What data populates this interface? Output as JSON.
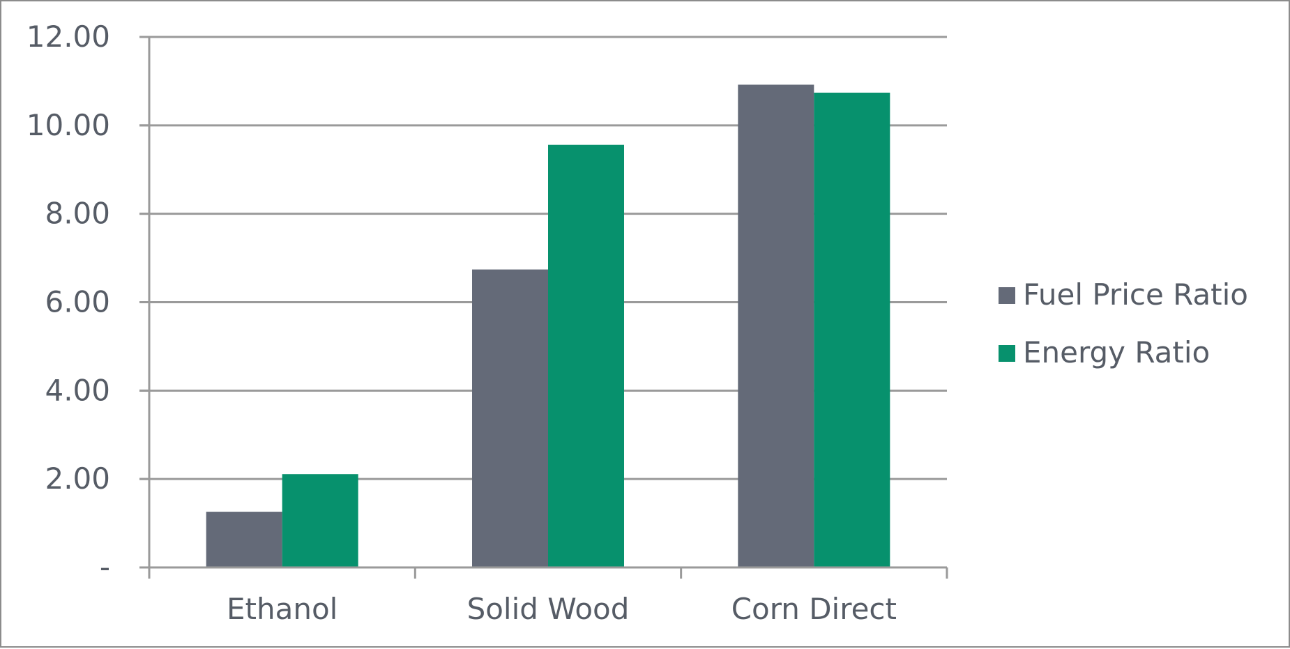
{
  "chart_data": {
    "type": "bar",
    "categories": [
      "Ethanol",
      "Solid Wood",
      "Corn Direct"
    ],
    "series": [
      {
        "name": "Fuel Price Ratio",
        "values": [
          1.26,
          6.74,
          10.92
        ],
        "color": "#646a78"
      },
      {
        "name": "Energy Ratio",
        "values": [
          2.11,
          9.56,
          10.74
        ],
        "color": "#07916d"
      }
    ],
    "ylim": [
      0,
      12
    ],
    "yticks": [
      0,
      2,
      4,
      6,
      8,
      10,
      12
    ],
    "ytick_labels": [
      "-",
      "2.00",
      "4.00",
      "6.00",
      "8.00",
      "10.00",
      "12.00"
    ],
    "grid": true,
    "legend_position": "right",
    "title": "",
    "xlabel": "",
    "ylabel": ""
  }
}
